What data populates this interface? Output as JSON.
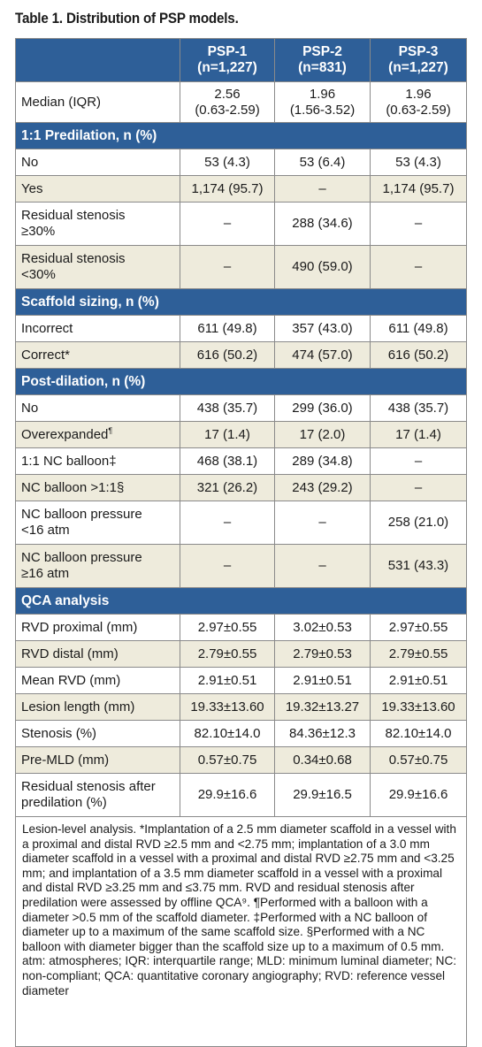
{
  "caption": "Table 1. Distribution of PSP models.",
  "columns": [
    {
      "name": "PSP-1",
      "n": "(n=1,227)"
    },
    {
      "name": "PSP-2",
      "n": "(n=831)"
    },
    {
      "name": "PSP-3",
      "n": "(n=1,227)"
    }
  ],
  "rows": {
    "median": {
      "label": "Median (IQR)",
      "v1": "2.56\n(0.63-2.59)",
      "v2": "1.96\n(1.56-3.52)",
      "v3": "1.96\n(0.63-2.59)"
    },
    "sec_predilation": "1:1 Predilation, n (%)",
    "pre_no": {
      "label": "No",
      "v1": "53 (4.3)",
      "v2": "53 (6.4)",
      "v3": "53 (4.3)"
    },
    "pre_yes": {
      "label": "Yes",
      "v1": "1,174 (95.7)",
      "v2": "–",
      "v3": "1,174 (95.7)"
    },
    "pre_res_ge30": {
      "label": "Residual stenosis\n≥30%",
      "v1": "–",
      "v2": "288 (34.6)",
      "v3": "–"
    },
    "pre_res_lt30": {
      "label": "Residual stenosis\n<30%",
      "v1": "–",
      "v2": "490 (59.0)",
      "v3": "–"
    },
    "sec_sizing": "Scaffold sizing, n (%)",
    "size_incorrect": {
      "label": "Incorrect",
      "v1": "611 (49.8)",
      "v2": "357 (43.0)",
      "v3": "611 (49.8)"
    },
    "size_correct": {
      "label": "Correct*",
      "v1": "616 (50.2)",
      "v2": "474 (57.0)",
      "v3": "616 (50.2)"
    },
    "sec_postdilation": "Post-dilation, n (%)",
    "post_no": {
      "label": "No",
      "v1": "438 (35.7)",
      "v2": "299 (36.0)",
      "v3": "438 (35.7)"
    },
    "post_overexp": {
      "label": "Overexpanded",
      "sup": "¶",
      "v1": "17 (1.4)",
      "v2": "17 (2.0)",
      "v3": "17 (1.4)"
    },
    "post_11nc": {
      "label": "1:1 NC balloon‡",
      "v1": "468 (38.1)",
      "v2": "289 (34.8)",
      "v3": "–"
    },
    "post_nc_gt": {
      "label": "NC balloon >1:1§",
      "v1": "321 (26.2)",
      "v2": "243 (29.2)",
      "v3": "–"
    },
    "post_nc_lt16": {
      "label": "NC balloon pressure\n<16 atm",
      "v1": "–",
      "v2": "–",
      "v3": "258 (21.0)"
    },
    "post_nc_ge16": {
      "label": "NC balloon pressure\n≥16 atm",
      "v1": "–",
      "v2": "–",
      "v3": "531 (43.3)"
    },
    "sec_qca": "QCA analysis",
    "rvd_prox": {
      "label": "RVD proximal (mm)",
      "v1": "2.97±0.55",
      "v2": "3.02±0.53",
      "v3": "2.97±0.55"
    },
    "rvd_dist": {
      "label": "RVD distal (mm)",
      "v1": "2.79±0.55",
      "v2": "2.79±0.53",
      "v3": "2.79±0.55"
    },
    "rvd_mean": {
      "label": "Mean RVD (mm)",
      "v1": "2.91±0.51",
      "v2": "2.91±0.51",
      "v3": "2.91±0.51"
    },
    "lesion_len": {
      "label": "Lesion length (mm)",
      "v1": "19.33±13.60",
      "v2": "19.32±13.27",
      "v3": "19.33±13.60"
    },
    "stenosis": {
      "label": "Stenosis (%)",
      "v1": "82.10±14.0",
      "v2": "84.36±12.3",
      "v3": "82.10±14.0"
    },
    "pre_mld": {
      "label": "Pre-MLD (mm)",
      "v1": "0.57±0.75",
      "v2": "0.34±0.68",
      "v3": "0.57±0.75"
    },
    "res_after": {
      "label": "Residual stenosis after\npredilation (%)",
      "v1": "29.9±16.6",
      "v2": "29.9±16.5",
      "v3": "29.9±16.6"
    }
  },
  "footnote": "Lesion-level analysis. *Implantation of a 2.5 mm diameter scaffold in a vessel with a proximal and distal RVD ≥2.5 mm and <2.75 mm; implantation of a 3.0 mm diameter scaffold in a vessel with a proximal and distal RVD ≥2.75 mm and <3.25 mm; and implantation of a 3.5 mm diameter scaffold in a vessel with a proximal and distal RVD ≥3.25 mm and ≤3.75 mm. RVD and residual stenosis after predilation were assessed by offline QCA⁹. ¶Performed with a balloon with a diameter >0.5 mm of the scaffold diameter. ‡Performed with a NC balloon of diameter up to a maximum of the same scaffold size. §Performed with a NC balloon with diameter bigger than the scaffold size up to a maximum of 0.5 mm. atm: atmospheres; IQR: interquartile range; MLD: minimum luminal diameter; NC: non-compliant; QCA: quantitative coronary angiography; RVD: reference vessel diameter"
}
